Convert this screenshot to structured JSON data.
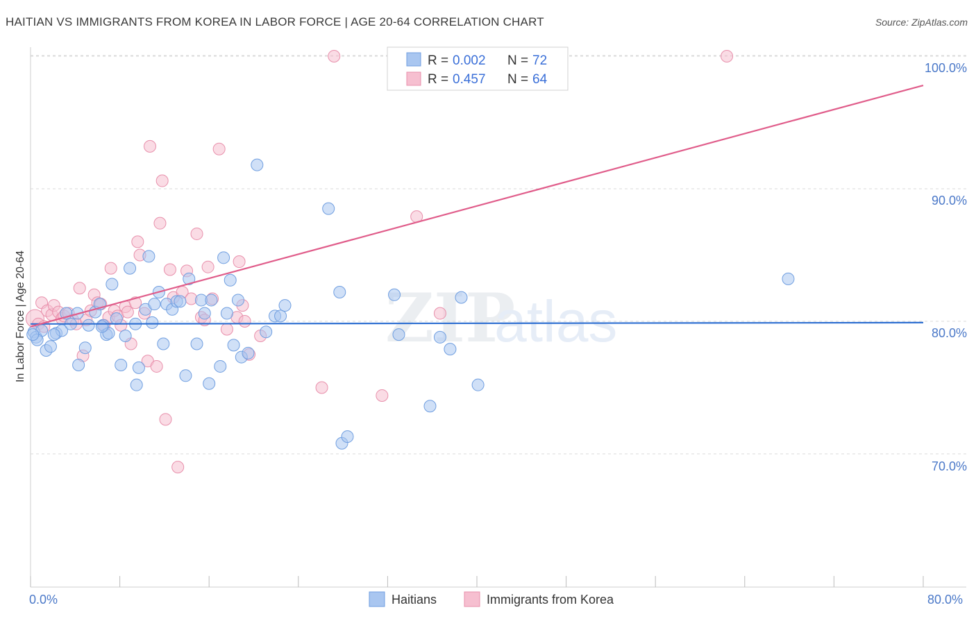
{
  "header": {
    "title": "HAITIAN VS IMMIGRANTS FROM KOREA IN LABOR FORCE | AGE 20-64 CORRELATION CHART",
    "source": "Source: ZipAtlas.com"
  },
  "watermark": {
    "zip": "ZIP",
    "atlas": "atlas"
  },
  "colors": {
    "haitians_fill": "#a9c6f0",
    "haitians_stroke": "#6f9ee0",
    "haitians_line": "#2e6fd1",
    "korea_fill": "#f6bfd0",
    "korea_stroke": "#e88fab",
    "korea_line": "#e05c8a",
    "grid": "#d9d9d9",
    "accent_text": "#3a6fd8"
  },
  "legend": {
    "rows": [
      {
        "r_label": "R = ",
        "r_value": "0.002",
        "n_label": "N = ",
        "n_value": "72"
      },
      {
        "r_label": "R = ",
        "r_value": "0.457",
        "n_label": "N = ",
        "n_value": "64"
      }
    ]
  },
  "chart_data": {
    "type": "scatter",
    "title": "HAITIAN VS IMMIGRANTS FROM KOREA IN LABOR FORCE | AGE 20-64 CORRELATION CHART",
    "xlabel": "",
    "ylabel": "In Labor Force | Age 20-64",
    "xlim": [
      0,
      80
    ],
    "ylim": [
      60,
      101.5
    ],
    "x_tick_labels": [
      "0.0%",
      "80.0%"
    ],
    "y_ticks": [
      70,
      80,
      90,
      100
    ],
    "y_tick_labels": [
      "70.0%",
      "80.0%",
      "90.0%",
      "100.0%"
    ],
    "grid": true,
    "series": [
      {
        "name": "Haitians",
        "r": 0.002,
        "n": 72,
        "trend": {
          "x": [
            0,
            80
          ],
          "y": [
            79.8,
            79.9
          ]
        },
        "points": [
          [
            0.3,
            79.2
          ],
          [
            0.5,
            78.8
          ],
          [
            1.0,
            79.3
          ],
          [
            1.4,
            77.8
          ],
          [
            1.8,
            78.1
          ],
          [
            2.3,
            79.1
          ],
          [
            2.8,
            79.3
          ],
          [
            3.2,
            80.6
          ],
          [
            3.6,
            79.8
          ],
          [
            4.2,
            80.6
          ],
          [
            4.9,
            78.0
          ],
          [
            4.3,
            76.7
          ],
          [
            5.2,
            79.7
          ],
          [
            5.8,
            80.7
          ],
          [
            6.2,
            81.3
          ],
          [
            6.5,
            79.7
          ],
          [
            6.8,
            79.0
          ],
          [
            7.0,
            79.1
          ],
          [
            7.3,
            82.8
          ],
          [
            7.7,
            80.2
          ],
          [
            8.1,
            76.7
          ],
          [
            8.5,
            78.9
          ],
          [
            8.9,
            84.0
          ],
          [
            9.4,
            79.8
          ],
          [
            9.5,
            75.2
          ],
          [
            9.7,
            76.5
          ],
          [
            10.3,
            80.9
          ],
          [
            10.6,
            84.9
          ],
          [
            10.9,
            79.9
          ],
          [
            11.1,
            81.3
          ],
          [
            11.5,
            82.2
          ],
          [
            11.9,
            78.3
          ],
          [
            12.2,
            81.3
          ],
          [
            12.7,
            80.9
          ],
          [
            13.1,
            81.5
          ],
          [
            13.4,
            81.5
          ],
          [
            13.9,
            75.9
          ],
          [
            14.2,
            83.2
          ],
          [
            14.9,
            78.3
          ],
          [
            15.3,
            81.6
          ],
          [
            15.6,
            80.6
          ],
          [
            16.0,
            75.3
          ],
          [
            16.2,
            81.6
          ],
          [
            17.0,
            76.6
          ],
          [
            17.3,
            84.8
          ],
          [
            17.6,
            80.6
          ],
          [
            17.9,
            83.1
          ],
          [
            18.2,
            78.2
          ],
          [
            18.6,
            81.6
          ],
          [
            18.9,
            77.3
          ],
          [
            19.5,
            77.6
          ],
          [
            20.3,
            91.8
          ],
          [
            21.1,
            79.2
          ],
          [
            21.9,
            80.4
          ],
          [
            22.4,
            80.4
          ],
          [
            22.8,
            81.2
          ],
          [
            26.7,
            88.5
          ],
          [
            27.7,
            82.2
          ],
          [
            27.9,
            70.8
          ],
          [
            28.4,
            71.3
          ],
          [
            32.6,
            82.0
          ],
          [
            33.0,
            79.0
          ],
          [
            35.8,
            73.6
          ],
          [
            36.7,
            78.8
          ],
          [
            37.6,
            77.9
          ],
          [
            38.6,
            81.8
          ],
          [
            40.1,
            75.2
          ],
          [
            67.9,
            83.2
          ],
          [
            0.6,
            78.6
          ],
          [
            2.1,
            79.0
          ],
          [
            6.4,
            79.6
          ],
          [
            0.2,
            79.0
          ]
        ]
      },
      {
        "name": "Immigrants from Korea",
        "r": 0.457,
        "n": 64,
        "trend": {
          "x": [
            0,
            80
          ],
          "y": [
            79.6,
            97.8
          ]
        },
        "points": [
          [
            0.4,
            80.2
          ],
          [
            0.7,
            79.8
          ],
          [
            1.0,
            81.4
          ],
          [
            1.2,
            79.6
          ],
          [
            1.5,
            80.8
          ],
          [
            1.9,
            80.5
          ],
          [
            2.1,
            81.2
          ],
          [
            2.5,
            80.7
          ],
          [
            2.8,
            80.2
          ],
          [
            3.0,
            80.4
          ],
          [
            3.4,
            80.6
          ],
          [
            3.8,
            80.1
          ],
          [
            4.1,
            79.8
          ],
          [
            4.4,
            82.5
          ],
          [
            4.7,
            77.4
          ],
          [
            5.0,
            80.1
          ],
          [
            5.4,
            80.8
          ],
          [
            5.7,
            82.0
          ],
          [
            6.0,
            81.4
          ],
          [
            6.3,
            81.3
          ],
          [
            6.6,
            79.7
          ],
          [
            7.0,
            80.3
          ],
          [
            7.2,
            84.0
          ],
          [
            7.5,
            80.8
          ],
          [
            7.8,
            80.4
          ],
          [
            8.1,
            79.7
          ],
          [
            8.5,
            81.1
          ],
          [
            8.7,
            80.7
          ],
          [
            9.0,
            78.3
          ],
          [
            9.4,
            81.4
          ],
          [
            9.6,
            86.0
          ],
          [
            9.8,
            85.0
          ],
          [
            10.2,
            80.6
          ],
          [
            10.5,
            77.0
          ],
          [
            10.7,
            93.2
          ],
          [
            11.3,
            76.6
          ],
          [
            11.6,
            87.4
          ],
          [
            11.8,
            90.6
          ],
          [
            12.1,
            72.6
          ],
          [
            12.5,
            83.9
          ],
          [
            12.8,
            81.8
          ],
          [
            13.2,
            69.0
          ],
          [
            13.6,
            82.2
          ],
          [
            14.0,
            83.8
          ],
          [
            14.4,
            81.7
          ],
          [
            14.9,
            86.6
          ],
          [
            15.3,
            80.3
          ],
          [
            15.6,
            80.1
          ],
          [
            15.9,
            84.1
          ],
          [
            16.3,
            81.7
          ],
          [
            16.9,
            93.0
          ],
          [
            17.6,
            79.4
          ],
          [
            18.5,
            80.3
          ],
          [
            18.7,
            84.5
          ],
          [
            19.0,
            81.2
          ],
          [
            19.2,
            80.0
          ],
          [
            19.6,
            77.5
          ],
          [
            20.6,
            78.9
          ],
          [
            26.1,
            75.0
          ],
          [
            27.2,
            100.0
          ],
          [
            31.5,
            74.4
          ],
          [
            34.6,
            87.9
          ],
          [
            36.7,
            80.6
          ],
          [
            62.4,
            100.0
          ]
        ]
      }
    ]
  },
  "bottom_legend": {
    "items": [
      "Haitians",
      "Immigrants from Korea"
    ]
  }
}
